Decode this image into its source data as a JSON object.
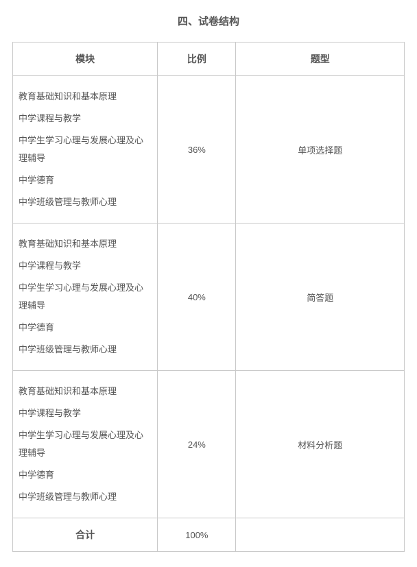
{
  "title": "四、试卷结构",
  "table": {
    "headers": {
      "module": "模块",
      "ratio": "比例",
      "type": "题型"
    },
    "moduleItems": [
      "教育基础知识和基本原理",
      "中学课程与教学",
      "中学生学习心理与发展心理及心理辅导",
      "中学德育",
      "中学班级管理与教师心理"
    ],
    "rows": [
      {
        "ratio": "36%",
        "type": "单项选择题"
      },
      {
        "ratio": "40%",
        "type": "简答题"
      },
      {
        "ratio": "24%",
        "type": "材料分析题"
      }
    ],
    "total": {
      "label": "合计",
      "ratio": "100%",
      "type": ""
    }
  },
  "style": {
    "border_color": "#c9c9c9",
    "text_color": "#555555",
    "title_fontsize": 15,
    "header_fontsize": 14,
    "cell_fontsize": 13,
    "line_height": 2.0,
    "background_color": "#ffffff"
  }
}
